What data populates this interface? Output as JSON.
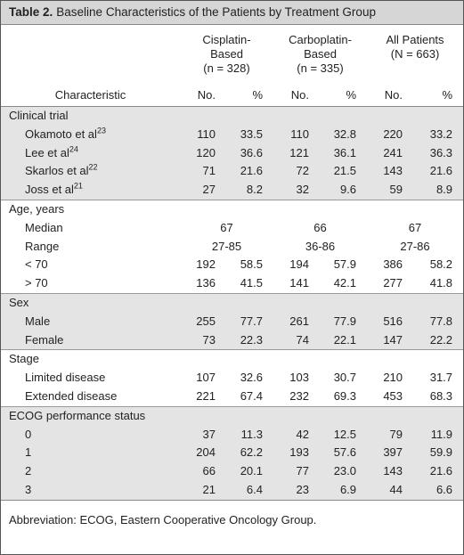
{
  "title": {
    "label": "Table 2.",
    "text": "Baseline Characteristics of the Patients by Treatment Group"
  },
  "header": {
    "groups": [
      [
        "Cisplatin-",
        "Based",
        "(n = 328)"
      ],
      [
        "Carboplatin-",
        "Based",
        "(n = 335)"
      ],
      [
        "All Patients",
        "(N = 663)"
      ]
    ],
    "characteristic": "Characteristic",
    "columns": [
      "No.",
      "%",
      "No.",
      "%",
      "No.",
      "%"
    ]
  },
  "sections": [
    {
      "title": "Clinical trial",
      "shaded": true,
      "rows": [
        {
          "label": "Okamoto et al",
          "sup": "23",
          "cells": [
            "110",
            "33.5",
            "110",
            "32.8",
            "220",
            "33.2"
          ]
        },
        {
          "label": "Lee et al",
          "sup": "24",
          "cells": [
            "120",
            "36.6",
            "121",
            "36.1",
            "241",
            "36.3"
          ]
        },
        {
          "label": "Skarlos et al",
          "sup": "22",
          "cells": [
            "71",
            "21.6",
            "72",
            "21.5",
            "143",
            "21.6"
          ]
        },
        {
          "label": "Joss et al",
          "sup": "21",
          "cells": [
            "27",
            "8.2",
            "32",
            "9.6",
            "59",
            "8.9"
          ]
        }
      ]
    },
    {
      "title": "Age, years",
      "shaded": false,
      "rows": [
        {
          "label": "Median",
          "cells": [
            "67",
            "66",
            "67"
          ]
        },
        {
          "label": "Range",
          "cells": [
            "27-85",
            "36-86",
            "27-86"
          ]
        },
        {
          "label": "< 70",
          "cells": [
            "192",
            "58.5",
            "194",
            "57.9",
            "386",
            "58.2"
          ]
        },
        {
          "label": "> 70",
          "cells": [
            "136",
            "41.5",
            "141",
            "42.1",
            "277",
            "41.8"
          ]
        }
      ]
    },
    {
      "title": "Sex",
      "shaded": true,
      "rows": [
        {
          "label": "Male",
          "cells": [
            "255",
            "77.7",
            "261",
            "77.9",
            "516",
            "77.8"
          ]
        },
        {
          "label": "Female",
          "cells": [
            "73",
            "22.3",
            "74",
            "22.1",
            "147",
            "22.2"
          ]
        }
      ]
    },
    {
      "title": "Stage",
      "shaded": false,
      "rows": [
        {
          "label": "Limited disease",
          "cells": [
            "107",
            "32.6",
            "103",
            "30.7",
            "210",
            "31.7"
          ]
        },
        {
          "label": "Extended disease",
          "cells": [
            "221",
            "67.4",
            "232",
            "69.3",
            "453",
            "68.3"
          ]
        }
      ]
    },
    {
      "title": "ECOG performance status",
      "shaded": true,
      "rows": [
        {
          "label": "0",
          "cells": [
            "37",
            "11.3",
            "42",
            "12.5",
            "79",
            "11.9"
          ]
        },
        {
          "label": "1",
          "cells": [
            "204",
            "62.2",
            "193",
            "57.6",
            "397",
            "59.9"
          ]
        },
        {
          "label": "2",
          "cells": [
            "66",
            "20.1",
            "77",
            "23.0",
            "143",
            "21.6"
          ]
        },
        {
          "label": "3",
          "cells": [
            "21",
            "6.4",
            "23",
            "6.9",
            "44",
            "6.6"
          ]
        }
      ]
    }
  ],
  "footnote": "Abbreviation: ECOG, Eastern Cooperative Oncology Group."
}
